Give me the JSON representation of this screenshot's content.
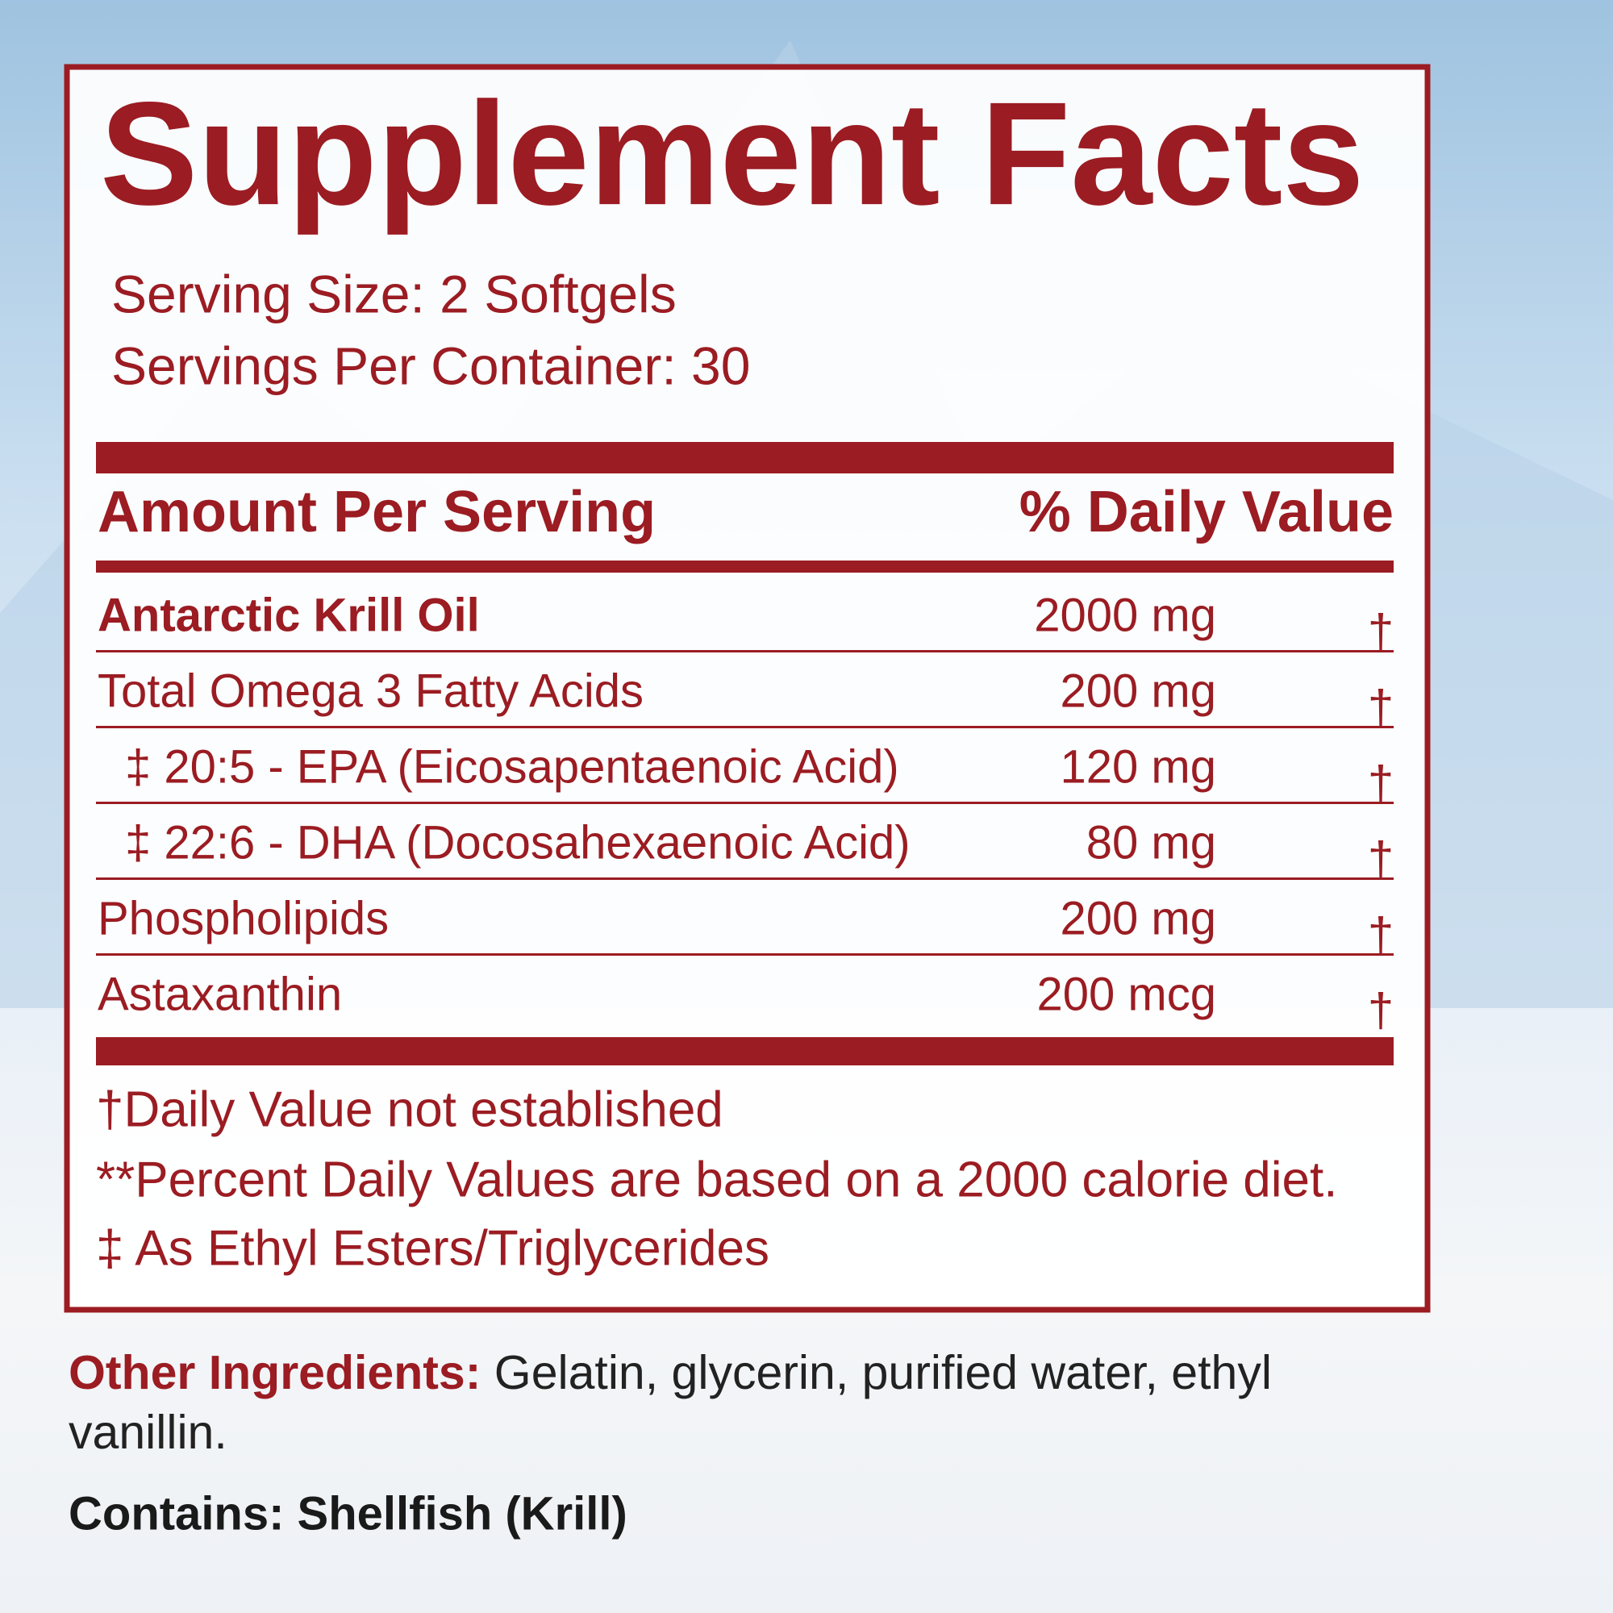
{
  "title": "Supplement Facts",
  "serving_size": "Serving Size: 2 Softgels",
  "servings_per_container": "Servings Per Container: 30",
  "table": {
    "header": {
      "amount": "Amount Per Serving",
      "daily_value": "% Daily Value"
    },
    "rows": [
      {
        "name": "Antarctic Krill Oil",
        "amount": "2000 mg",
        "daily_value": "†"
      },
      {
        "name": "Total Omega 3 Fatty Acids",
        "amount": "200 mg",
        "daily_value": "†"
      },
      {
        "name": "‡ 20:5 - EPA (Eicosapentaenoic Acid)",
        "amount": "120 mg",
        "daily_value": "†"
      },
      {
        "name": "‡ 22:6 - DHA (Docosahexaenoic Acid)",
        "amount": "80 mg",
        "daily_value": "†"
      },
      {
        "name": "Phospholipids",
        "amount": "200 mg",
        "daily_value": "†"
      },
      {
        "name": "Astaxanthin",
        "amount": "200 mcg",
        "daily_value": "†"
      }
    ]
  },
  "footnotes": [
    "†Daily Value not established",
    "**Percent Daily Values are based on a 2000 calorie diet.",
    "‡ As Ethyl Esters/Triglycerides"
  ],
  "other_ingredients": {
    "label": "Other Ingredients:",
    "text": "Gelatin, glycerin, purified water, ethyl vanillin."
  },
  "contains": "Contains: Shellfish (Krill)"
}
